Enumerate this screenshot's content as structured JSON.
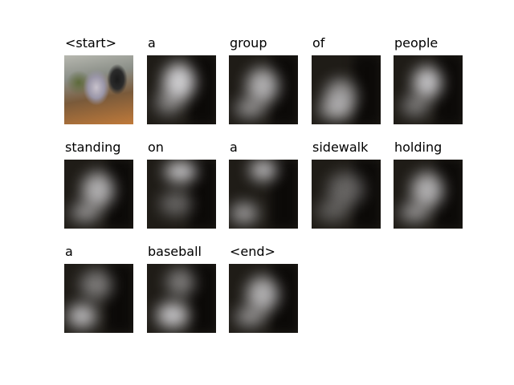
{
  "tokens": [
    {
      "word": "<start>",
      "kind": "original"
    },
    {
      "word": "a",
      "kind": "attention",
      "focus": "center-top"
    },
    {
      "word": "group",
      "kind": "attention",
      "focus": "center"
    },
    {
      "word": "of",
      "kind": "attention",
      "focus": "center-bottom"
    },
    {
      "word": "people",
      "kind": "attention",
      "focus": "upper-center"
    },
    {
      "word": "standing",
      "kind": "attention",
      "focus": "center"
    },
    {
      "word": "on",
      "kind": "attention",
      "focus": "top"
    },
    {
      "word": "a",
      "kind": "attention",
      "focus": "top-bottom"
    },
    {
      "word": "sidewalk",
      "kind": "attention",
      "focus": "diffuse"
    },
    {
      "word": "holding",
      "kind": "attention",
      "focus": "center"
    },
    {
      "word": "a",
      "kind": "attention",
      "focus": "bottom-left"
    },
    {
      "word": "baseball",
      "kind": "attention",
      "focus": "bottom"
    },
    {
      "word": "<end>",
      "kind": "attention",
      "focus": "center"
    }
  ]
}
